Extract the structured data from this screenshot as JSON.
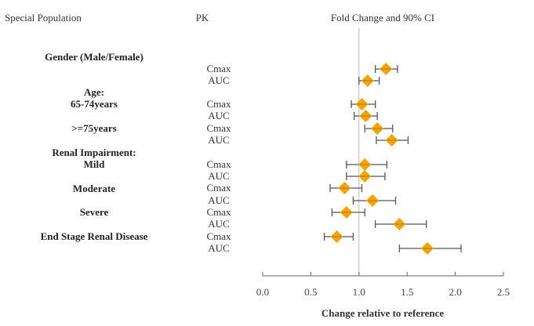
{
  "chart_data": {
    "type": "forest",
    "title": "Fold Change and 90% CI",
    "column_headers": {
      "population": "Special Population",
      "pk": "PK",
      "plot": "Fold Change and 90% CI"
    },
    "xlabel": "Change relative to reference",
    "xlim": [
      0.0,
      2.5
    ],
    "xticks": [
      "0.0",
      "0.5",
      "1.0",
      "1.5",
      "2.0",
      "2.5"
    ],
    "reference_line": 1.0,
    "marker_color": "#F5A300",
    "groups": [
      {
        "label": "Gender (Male/Female)",
        "sublabel": ""
      },
      {
        "label": "Age:",
        "sublabel": "65-74years"
      },
      {
        "label": "",
        "sublabel": ">=75years"
      },
      {
        "label": "Renal Impairment:",
        "sublabel": "Mild"
      },
      {
        "label": "",
        "sublabel": "Moderate"
      },
      {
        "label": "",
        "sublabel": "Severe"
      },
      {
        "label": "",
        "sublabel": "End Stage Renal Disease"
      }
    ],
    "rows": [
      {
        "group": 0,
        "pk": "Cmax",
        "value": 1.28,
        "lo": 1.17,
        "hi": 1.4
      },
      {
        "group": 0,
        "pk": "AUC",
        "value": 1.09,
        "lo": 1.0,
        "hi": 1.21
      },
      {
        "group": 1,
        "pk": "Cmax",
        "value": 1.03,
        "lo": 0.92,
        "hi": 1.17
      },
      {
        "group": 1,
        "pk": "AUC",
        "value": 1.07,
        "lo": 0.95,
        "hi": 1.19
      },
      {
        "group": 2,
        "pk": "Cmax",
        "value": 1.19,
        "lo": 1.06,
        "hi": 1.35
      },
      {
        "group": 2,
        "pk": "AUC",
        "value": 1.34,
        "lo": 1.18,
        "hi": 1.51
      },
      {
        "group": 3,
        "pk": "Cmax",
        "value": 1.06,
        "lo": 0.87,
        "hi": 1.29
      },
      {
        "group": 3,
        "pk": "AUC",
        "value": 1.06,
        "lo": 0.87,
        "hi": 1.27
      },
      {
        "group": 4,
        "pk": "Cmax",
        "value": 0.85,
        "lo": 0.7,
        "hi": 1.03
      },
      {
        "group": 4,
        "pk": "AUC",
        "value": 1.14,
        "lo": 0.94,
        "hi": 1.38
      },
      {
        "group": 5,
        "pk": "Cmax",
        "value": 0.87,
        "lo": 0.72,
        "hi": 1.06
      },
      {
        "group": 5,
        "pk": "AUC",
        "value": 1.42,
        "lo": 1.17,
        "hi": 1.7
      },
      {
        "group": 6,
        "pk": "Cmax",
        "value": 0.77,
        "lo": 0.64,
        "hi": 0.94
      },
      {
        "group": 6,
        "pk": "AUC",
        "value": 1.71,
        "lo": 1.42,
        "hi": 2.06
      }
    ]
  }
}
